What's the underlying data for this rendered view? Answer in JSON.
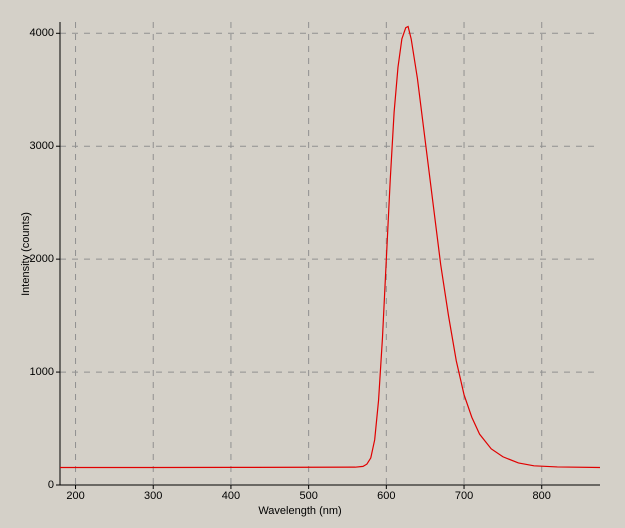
{
  "chart_data": {
    "type": "line",
    "xlabel": "Wavelength (nm)",
    "ylabel": "Intensity (counts)",
    "x": [
      180,
      300,
      400,
      500,
      560,
      570,
      575,
      580,
      585,
      590,
      595,
      600,
      605,
      610,
      615,
      620,
      625,
      628,
      632,
      640,
      650,
      660,
      670,
      680,
      690,
      700,
      710,
      720,
      735,
      750,
      770,
      790,
      820,
      875
    ],
    "series": [
      {
        "color": "#e00000",
        "values": [
          155,
          155,
          156,
          157,
          158,
          165,
          185,
          240,
          400,
          750,
          1300,
          2000,
          2700,
          3300,
          3700,
          3950,
          4050,
          4060,
          3950,
          3600,
          3050,
          2500,
          1950,
          1500,
          1100,
          800,
          600,
          450,
          320,
          250,
          195,
          170,
          160,
          155
        ]
      }
    ],
    "xlim": [
      180,
      875
    ],
    "xticks": [
      200,
      300,
      400,
      500,
      600,
      700,
      800
    ],
    "ylim": [
      0,
      4100
    ],
    "yticks": [
      0,
      1000,
      2000,
      3000,
      4000
    ],
    "grid": true
  }
}
